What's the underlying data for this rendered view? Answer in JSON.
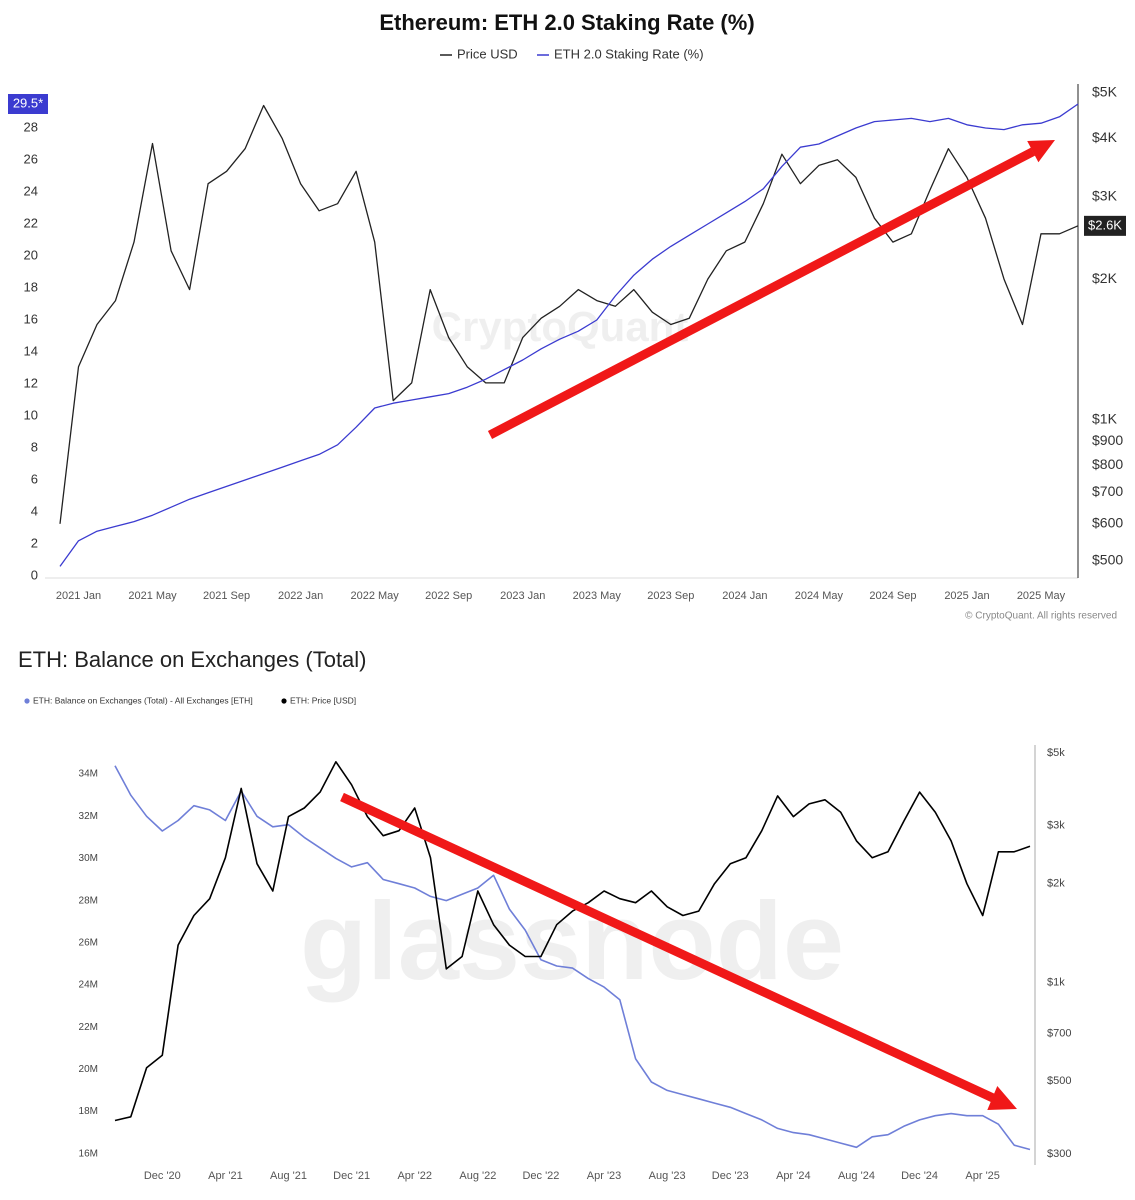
{
  "chart_data": [
    {
      "type": "line",
      "title": "Ethereum: ETH 2.0 Staking Rate (%)",
      "credit": "© CryptoQuant. All rights reserved",
      "watermark": "CryptoQuant",
      "x": [
        "2020-12",
        "2021-01",
        "2021-02",
        "2021-03",
        "2021-04",
        "2021-05",
        "2021-06",
        "2021-07",
        "2021-08",
        "2021-09",
        "2021-10",
        "2021-11",
        "2021-12",
        "2022-01",
        "2022-02",
        "2022-03",
        "2022-04",
        "2022-05",
        "2022-06",
        "2022-07",
        "2022-08",
        "2022-09",
        "2022-10",
        "2022-11",
        "2022-12",
        "2023-01",
        "2023-02",
        "2023-03",
        "2023-04",
        "2023-05",
        "2023-06",
        "2023-07",
        "2023-08",
        "2023-09",
        "2023-10",
        "2023-11",
        "2023-12",
        "2024-01",
        "2024-02",
        "2024-03",
        "2024-04",
        "2024-05",
        "2024-06",
        "2024-07",
        "2024-08",
        "2024-09",
        "2024-10",
        "2024-11",
        "2024-12",
        "2025-01",
        "2025-02",
        "2025-03",
        "2025-04",
        "2025-05",
        "2025-06",
        "2025-07"
      ],
      "xlim": [
        "2020-12",
        "2025-07"
      ],
      "xticks": [
        {
          "value": "2021-01",
          "label": "2021 Jan"
        },
        {
          "value": "2021-05",
          "label": "2021 May"
        },
        {
          "value": "2021-09",
          "label": "2021 Sep"
        },
        {
          "value": "2022-01",
          "label": "2022 Jan"
        },
        {
          "value": "2022-05",
          "label": "2022 May"
        },
        {
          "value": "2022-09",
          "label": "2022 Sep"
        },
        {
          "value": "2023-01",
          "label": "2023 Jan"
        },
        {
          "value": "2023-05",
          "label": "2023 May"
        },
        {
          "value": "2023-09",
          "label": "2023 Sep"
        },
        {
          "value": "2024-01",
          "label": "2024 Jan"
        },
        {
          "value": "2024-05",
          "label": "2024 May"
        },
        {
          "value": "2024-09",
          "label": "2024 Sep"
        },
        {
          "value": "2025-01",
          "label": "2025 Jan"
        },
        {
          "value": "2025-05",
          "label": "2025 May"
        }
      ],
      "ylim": [
        0,
        30.5
      ],
      "yticks": [
        0,
        2,
        4,
        6,
        8,
        10,
        12,
        14,
        16,
        18,
        20,
        22,
        24,
        26,
        28
      ],
      "y2lim": [
        464,
        5124
      ],
      "y2log": true,
      "y2ticks": [
        {
          "value": 5000,
          "label": "$5K"
        },
        {
          "value": 4000,
          "label": "$4K"
        },
        {
          "value": 3000,
          "label": "$3K"
        },
        {
          "value": 2000,
          "label": "$2K"
        },
        {
          "value": 1000,
          "label": "$1K"
        },
        {
          "value": 900,
          "label": "$900"
        },
        {
          "value": 800,
          "label": "$800"
        },
        {
          "value": 700,
          "label": "$700"
        },
        {
          "value": 600,
          "label": "$600"
        },
        {
          "value": 500,
          "label": "$500"
        }
      ],
      "series": [
        {
          "name": "Price USD",
          "color": "#222222",
          "axis": "y2",
          "values": [
            600,
            1300,
            1600,
            1800,
            2400,
            3900,
            2300,
            1900,
            3200,
            3400,
            3800,
            4700,
            4000,
            3200,
            2800,
            2900,
            3400,
            2400,
            1100,
            1200,
            1900,
            1500,
            1300,
            1200,
            1200,
            1500,
            1650,
            1750,
            1900,
            1800,
            1750,
            1900,
            1700,
            1600,
            1650,
            2000,
            2300,
            2400,
            2900,
            3700,
            3200,
            3500,
            3600,
            3300,
            2700,
            2400,
            2500,
            3100,
            3800,
            3300,
            2700,
            2000,
            1600,
            2500,
            2500,
            2600
          ],
          "value_labels": [
            null,
            null,
            null,
            null,
            null,
            null,
            null,
            null,
            null,
            null,
            null,
            null,
            null,
            null,
            null,
            null,
            null,
            null,
            null,
            null,
            null,
            null,
            null,
            null,
            null,
            null,
            null,
            null,
            null,
            null,
            null,
            null,
            null,
            null,
            null,
            null,
            null,
            null,
            null,
            null,
            null,
            null,
            null,
            null,
            null,
            null,
            null,
            null,
            null,
            null,
            null,
            null,
            null,
            null,
            null,
            "$2.6K"
          ]
        },
        {
          "name": "ETH 2.0 Staking Rate (%)",
          "color": "#3b3bd0",
          "axis": "y",
          "values": [
            0.6,
            2.2,
            2.8,
            3.1,
            3.4,
            3.8,
            4.3,
            4.8,
            5.2,
            5.6,
            6.0,
            6.4,
            6.8,
            7.2,
            7.6,
            8.2,
            9.3,
            10.5,
            10.8,
            11.0,
            11.2,
            11.4,
            11.8,
            12.3,
            12.9,
            13.5,
            14.2,
            14.8,
            15.3,
            16.0,
            17.5,
            18.8,
            19.8,
            20.6,
            21.3,
            22.0,
            22.7,
            23.4,
            24.2,
            25.6,
            26.8,
            27.0,
            27.5,
            28.0,
            28.4,
            28.5,
            28.6,
            28.4,
            28.6,
            28.2,
            28.0,
            27.9,
            28.2,
            28.3,
            28.7,
            29.5
          ],
          "value_labels": [
            null,
            null,
            null,
            null,
            null,
            null,
            null,
            null,
            null,
            null,
            null,
            null,
            null,
            null,
            null,
            null,
            null,
            null,
            null,
            null,
            null,
            null,
            null,
            null,
            null,
            null,
            null,
            null,
            null,
            null,
            null,
            null,
            null,
            null,
            null,
            null,
            null,
            null,
            null,
            null,
            null,
            null,
            null,
            null,
            null,
            null,
            null,
            null,
            null,
            null,
            null,
            null,
            null,
            null,
            null,
            "29.5*"
          ]
        }
      ]
    },
    {
      "type": "line",
      "title": "ETH: Balance on Exchanges (Total)",
      "watermark": "glassnode",
      "x": [
        "2020-09",
        "2020-10",
        "2020-11",
        "2020-12",
        "2021-01",
        "2021-02",
        "2021-03",
        "2021-04",
        "2021-05",
        "2021-06",
        "2021-07",
        "2021-08",
        "2021-09",
        "2021-10",
        "2021-11",
        "2021-12",
        "2022-01",
        "2022-02",
        "2022-03",
        "2022-04",
        "2022-05",
        "2022-06",
        "2022-07",
        "2022-08",
        "2022-09",
        "2022-10",
        "2022-11",
        "2022-12",
        "2023-01",
        "2023-02",
        "2023-03",
        "2023-04",
        "2023-05",
        "2023-06",
        "2023-07",
        "2023-08",
        "2023-09",
        "2023-10",
        "2023-11",
        "2023-12",
        "2024-01",
        "2024-02",
        "2024-03",
        "2024-04",
        "2024-05",
        "2024-06",
        "2024-07",
        "2024-08",
        "2024-09",
        "2024-10",
        "2024-11",
        "2024-12",
        "2025-01",
        "2025-02",
        "2025-03",
        "2025-04",
        "2025-05",
        "2025-06",
        "2025-07"
      ],
      "xlim": [
        "2020-09",
        "2025-07"
      ],
      "xticks": [
        {
          "value": "2020-12",
          "label": "Dec '20"
        },
        {
          "value": "2021-04",
          "label": "Apr '21"
        },
        {
          "value": "2021-08",
          "label": "Aug '21"
        },
        {
          "value": "2021-12",
          "label": "Dec '21"
        },
        {
          "value": "2022-04",
          "label": "Apr '22"
        },
        {
          "value": "2022-08",
          "label": "Aug '22"
        },
        {
          "value": "2022-12",
          "label": "Dec '22"
        },
        {
          "value": "2023-04",
          "label": "Apr '23"
        },
        {
          "value": "2023-08",
          "label": "Aug '23"
        },
        {
          "value": "2023-12",
          "label": "Dec '23"
        },
        {
          "value": "2024-04",
          "label": "Apr '24"
        },
        {
          "value": "2024-08",
          "label": "Aug '24"
        },
        {
          "value": "2024-12",
          "label": "Dec '24"
        },
        {
          "value": "2025-04",
          "label": "Apr '25"
        }
      ],
      "ylim": [
        15700000,
        35000000
      ],
      "yticks": [
        {
          "value": 16000000,
          "label": "16M"
        },
        {
          "value": 18000000,
          "label": "18M"
        },
        {
          "value": 20000000,
          "label": "20M"
        },
        {
          "value": 22000000,
          "label": "22M"
        },
        {
          "value": 24000000,
          "label": "24M"
        },
        {
          "value": 26000000,
          "label": "26M"
        },
        {
          "value": 28000000,
          "label": "28M"
        },
        {
          "value": 30000000,
          "label": "30M"
        },
        {
          "value": 32000000,
          "label": "32M"
        },
        {
          "value": 34000000,
          "label": "34M"
        }
      ],
      "y2lim": [
        288,
        5000
      ],
      "y2log": true,
      "y2ticks": [
        {
          "value": 5000,
          "label": "$5k"
        },
        {
          "value": 3000,
          "label": "$3k"
        },
        {
          "value": 2000,
          "label": "$2k"
        },
        {
          "value": 1000,
          "label": "$1k"
        },
        {
          "value": 700,
          "label": "$700"
        },
        {
          "value": 500,
          "label": "$500"
        },
        {
          "value": 300,
          "label": "$300"
        }
      ],
      "series": [
        {
          "name": "ETH: Balance on Exchanges (Total) - All Exchanges [ETH]",
          "color": "#6f7fd8",
          "axis": "y",
          "values": [
            34400000,
            33000000,
            32000000,
            31300000,
            31800000,
            32500000,
            32300000,
            31800000,
            33200000,
            32000000,
            31500000,
            31600000,
            31000000,
            30500000,
            30000000,
            29600000,
            29800000,
            29000000,
            28800000,
            28600000,
            28200000,
            28000000,
            28300000,
            28600000,
            29200000,
            27600000,
            26600000,
            25200000,
            24900000,
            24800000,
            24300000,
            23900000,
            23300000,
            20500000,
            19400000,
            19000000,
            18800000,
            18600000,
            18400000,
            18200000,
            17900000,
            17600000,
            17200000,
            17000000,
            16900000,
            16700000,
            16500000,
            16300000,
            16800000,
            16900000,
            17300000,
            17600000,
            17800000,
            17900000,
            17800000,
            17800000,
            17400000,
            16400000,
            16200000
          ]
        },
        {
          "name": "ETH: Price [USD]",
          "color": "#000000",
          "axis": "y2",
          "values": [
            380,
            390,
            550,
            600,
            1300,
            1600,
            1800,
            2400,
            3900,
            2300,
            1900,
            3200,
            3400,
            3800,
            4700,
            4000,
            3200,
            2800,
            2900,
            3400,
            2400,
            1100,
            1200,
            1900,
            1500,
            1300,
            1200,
            1200,
            1500,
            1650,
            1750,
            1900,
            1800,
            1750,
            1900,
            1700,
            1600,
            1650,
            2000,
            2300,
            2400,
            2900,
            3700,
            3200,
            3500,
            3600,
            3300,
            2700,
            2400,
            2500,
            3100,
            3800,
            3300,
            2700,
            2000,
            1600,
            2500,
            2500,
            2600
          ]
        }
      ]
    }
  ]
}
